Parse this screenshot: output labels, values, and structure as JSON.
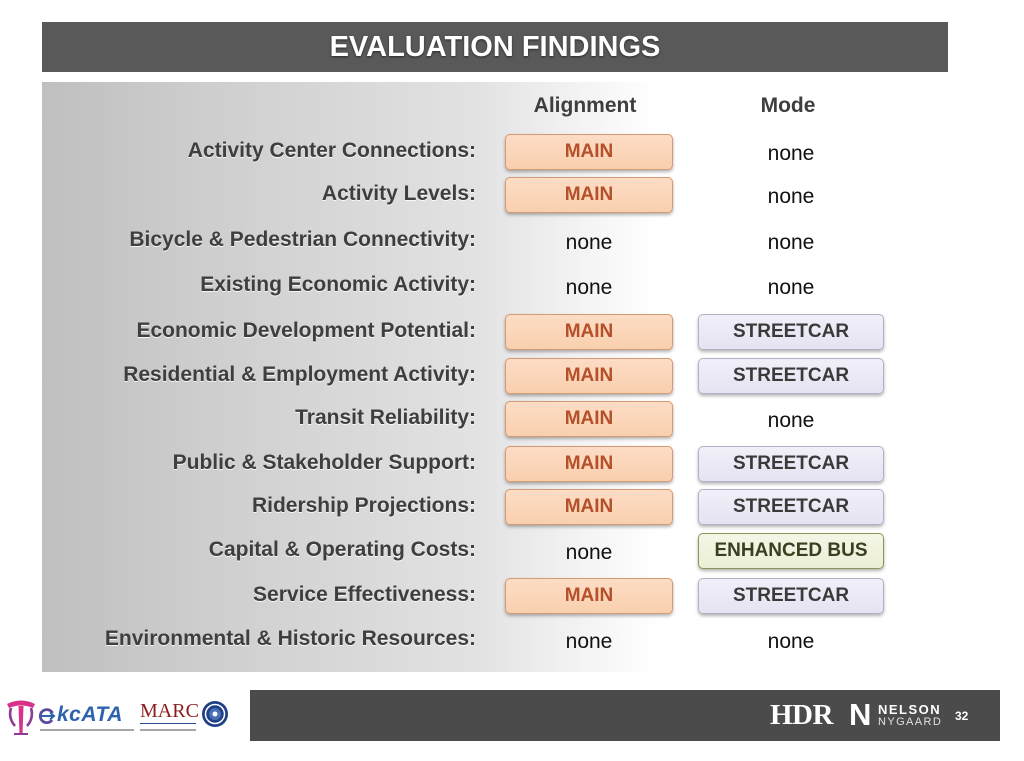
{
  "slide": {
    "title": "EVALUATION FINDINGS",
    "page_number": "32"
  },
  "table": {
    "headers": {
      "alignment": "Alignment",
      "mode": "Mode"
    },
    "rows": [
      {
        "label": "Activity Center Connections:",
        "alignment": "MAIN",
        "mode": "none"
      },
      {
        "label": "Activity Levels:",
        "alignment": "MAIN",
        "mode": "none"
      },
      {
        "label": "Bicycle & Pedestrian Connectivity:",
        "alignment": "none",
        "mode": "none"
      },
      {
        "label": "Existing Economic Activity:",
        "alignment": "none",
        "mode": "none"
      },
      {
        "label": "Economic Development Potential:",
        "alignment": "MAIN",
        "mode": "STREETCAR"
      },
      {
        "label": "Residential & Employment Activity:",
        "alignment": "MAIN",
        "mode": "STREETCAR"
      },
      {
        "label": "Transit Reliability:",
        "alignment": "MAIN",
        "mode": "none"
      },
      {
        "label": "Public & Stakeholder Support:",
        "alignment": "MAIN",
        "mode": "STREETCAR"
      },
      {
        "label": "Ridership Projections:",
        "alignment": "MAIN",
        "mode": "STREETCAR"
      },
      {
        "label": "Capital & Operating Costs:",
        "alignment": "none",
        "mode": "ENHANCED BUS"
      },
      {
        "label": "Service Effectiveness:",
        "alignment": "MAIN",
        "mode": "STREETCAR"
      },
      {
        "label": "Environmental & Historic Resources:",
        "alignment": "none",
        "mode": "none"
      }
    ]
  },
  "colors": {
    "title_bar": "#595959",
    "footer_band": "#4b4b4b",
    "label_text": "#3e3e3e",
    "main_text": "#b4502a",
    "main_badge": "#f9d0ae",
    "streetcar_badge": "#e6e3f2",
    "bus_badge": "#ebeed6",
    "bus_border": "#8a9557"
  },
  "footer": {
    "logos": {
      "streetcar_icon": "kc-streetcar-logo-icon",
      "kcata_mark_icon": "kcata-arrow-icon",
      "kcata": "kcATA",
      "marc": "MARC",
      "seal_icon": "marc-seal-icon",
      "hdr": "HDR",
      "nelson_mark": "N",
      "nelson_line1": "NELSON",
      "nelson_line2": "NYGAARD"
    }
  }
}
